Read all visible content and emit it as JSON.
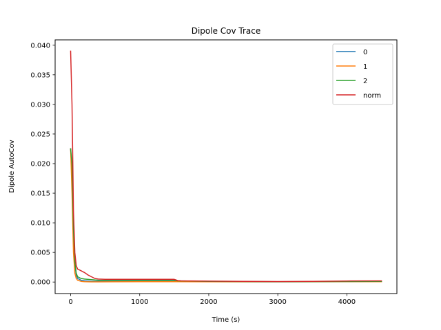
{
  "chart_data": {
    "type": "line",
    "title": "Dipole Cov Trace",
    "xlabel": "Time (s)",
    "ylabel": "Dipole AutoCov",
    "xlim": [
      -225,
      4725
    ],
    "ylim": [
      -0.00195,
      0.0409
    ],
    "xticks": [
      0,
      1000,
      2000,
      3000,
      4000
    ],
    "xtick_labels": [
      "0",
      "1000",
      "2000",
      "3000",
      "4000"
    ],
    "yticks": [
      0.0,
      0.005,
      0.01,
      0.015,
      0.02,
      0.025,
      0.03,
      0.035,
      0.04
    ],
    "ytick_labels": [
      "0.000",
      "0.005",
      "0.010",
      "0.015",
      "0.020",
      "0.025",
      "0.030",
      "0.035",
      "0.040"
    ],
    "grid": false,
    "legend_position": "top-right",
    "series": [
      {
        "name": "0",
        "color": "#1f77b4",
        "x": [
          0,
          20,
          40,
          60,
          80,
          100,
          150,
          200,
          300,
          400,
          600,
          1000,
          1500,
          1550,
          2000,
          3000,
          4000,
          4500
        ],
        "y": [
          0.0225,
          0.018,
          0.008,
          0.003,
          0.0012,
          0.0006,
          0.0003,
          0.0002,
          0.00012,
          0.0001,
          0.0001,
          0.0001,
          0.0001,
          8e-05,
          5e-05,
          4e-05,
          6e-05,
          8e-05
        ]
      },
      {
        "name": "1",
        "color": "#ff7f0e",
        "x": [
          0,
          20,
          40,
          60,
          80,
          100,
          150,
          200,
          300,
          400,
          600,
          1000,
          1500,
          1550,
          2000,
          3000,
          4000,
          4500
        ],
        "y": [
          0.0225,
          0.015,
          0.005,
          0.0015,
          0.0006,
          0.0003,
          0.00012,
          5e-05,
          2e-05,
          2e-05,
          3e-05,
          5e-05,
          6e-05,
          5e-05,
          4e-05,
          4e-05,
          5e-05,
          6e-05
        ]
      },
      {
        "name": "2",
        "color": "#2ca02c",
        "x": [
          0,
          20,
          40,
          60,
          80,
          100,
          150,
          200,
          300,
          400,
          600,
          1000,
          1500,
          1550,
          2000,
          3000,
          4000,
          4500
        ],
        "y": [
          0.0225,
          0.02,
          0.009,
          0.0035,
          0.0015,
          0.0009,
          0.0006,
          0.0005,
          0.0004,
          0.0003,
          0.0003,
          0.0003,
          0.0003,
          0.0002,
          0.0001,
          6e-05,
          8e-05,
          0.0001
        ]
      },
      {
        "name": "norm",
        "color": "#d62728",
        "x": [
          0,
          20,
          40,
          60,
          80,
          100,
          150,
          200,
          250,
          300,
          350,
          400,
          500,
          600,
          800,
          1000,
          1200,
          1400,
          1500,
          1550,
          1600,
          2000,
          2500,
          3000,
          3500,
          4000,
          4500
        ],
        "y": [
          0.039,
          0.03,
          0.012,
          0.005,
          0.0028,
          0.0022,
          0.0019,
          0.0016,
          0.0012,
          0.0009,
          0.0006,
          0.0005,
          0.00045,
          0.00045,
          0.00045,
          0.00045,
          0.00045,
          0.00045,
          0.00045,
          0.00025,
          0.0002,
          0.00015,
          0.0001,
          8e-05,
          0.00012,
          0.00018,
          0.0002
        ]
      }
    ]
  }
}
